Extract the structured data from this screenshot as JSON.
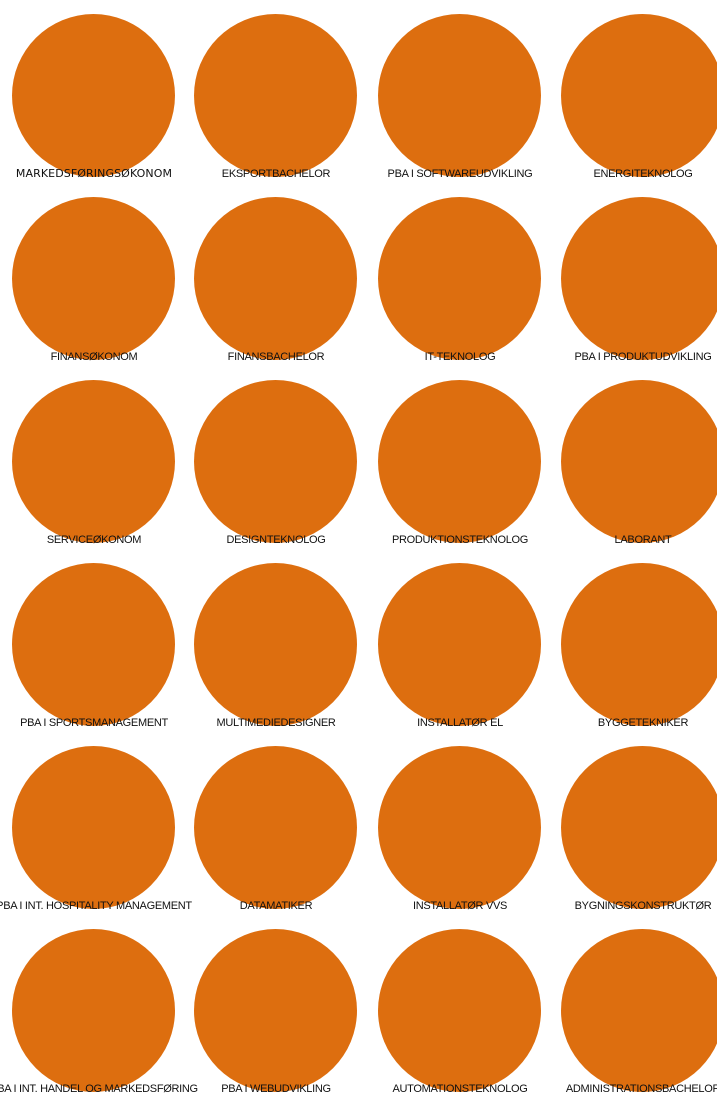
{
  "accent_color": "#dd6e0f",
  "text_color": "#111111",
  "items": [
    {
      "label": "MARKEDSFØRINGSØKONOM"
    },
    {
      "label": "EKSPORTBACHELOR"
    },
    {
      "label": "PBA I SOFTWAREUDVIKLING"
    },
    {
      "label": "ENERGITEKNOLOG"
    },
    {
      "label": "FINANSØKONOM"
    },
    {
      "label": "FINANSBACHELOR"
    },
    {
      "label": "IT-TEKNOLOG"
    },
    {
      "label": "PBA I PRODUKTUDVIKLING"
    },
    {
      "label": "SERVICEØKONOM"
    },
    {
      "label": "DESIGNTEKNOLOG"
    },
    {
      "label": "PRODUKTIONSTEKNOLOG"
    },
    {
      "label": "LABORANT"
    },
    {
      "label": "PBA I SPORTSMANAGEMENT"
    },
    {
      "label": "MULTIMEDIEDESIGNER"
    },
    {
      "label": "INSTALLATØR EL"
    },
    {
      "label": "BYGGETEKNIKER"
    },
    {
      "label": "PBA I INT. HOSPITALITY MANAGEMENT"
    },
    {
      "label": "DATAMATIKER"
    },
    {
      "label": "INSTALLATØR VVS"
    },
    {
      "label": "BYGNINGSKONSTRUKTØR"
    },
    {
      "label": "PBA I INT. HANDEL OG MARKEDSFØRING"
    },
    {
      "label": "PBA I WEBUDVIKLING"
    },
    {
      "label": "AUTOMATIONSTEKNOLOG"
    },
    {
      "label": "ADMINISTRATIONSBACHELOR"
    }
  ]
}
